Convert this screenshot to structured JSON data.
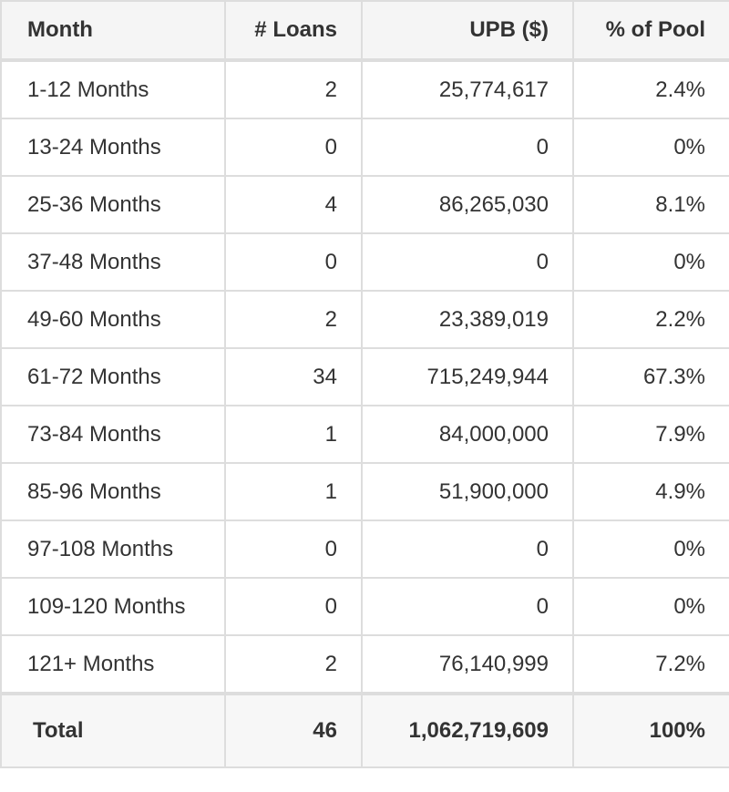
{
  "table": {
    "headers": {
      "month": "Month",
      "loans": "# Loans",
      "upb": "UPB ($)",
      "pct": "% of Pool"
    },
    "rows": [
      {
        "month": "1-12 Months",
        "loans": "2",
        "upb": "25,774,617",
        "pct": "2.4%"
      },
      {
        "month": "13-24 Months",
        "loans": "0",
        "upb": "0",
        "pct": "0%"
      },
      {
        "month": "25-36 Months",
        "loans": "4",
        "upb": "86,265,030",
        "pct": "8.1%"
      },
      {
        "month": "37-48 Months",
        "loans": "0",
        "upb": "0",
        "pct": "0%"
      },
      {
        "month": "49-60 Months",
        "loans": "2",
        "upb": "23,389,019",
        "pct": "2.2%"
      },
      {
        "month": "61-72 Months",
        "loans": "34",
        "upb": "715,249,944",
        "pct": "67.3%"
      },
      {
        "month": "73-84 Months",
        "loans": "1",
        "upb": "84,000,000",
        "pct": "7.9%"
      },
      {
        "month": "85-96 Months",
        "loans": "1",
        "upb": "51,900,000",
        "pct": "4.9%"
      },
      {
        "month": "97-108 Months",
        "loans": "0",
        "upb": "0",
        "pct": "0%"
      },
      {
        "month": "109-120 Months",
        "loans": "0",
        "upb": "0",
        "pct": "0%"
      },
      {
        "month": "121+ Months",
        "loans": "2",
        "upb": "76,140,999",
        "pct": "7.2%"
      }
    ],
    "total": {
      "month": "Total",
      "loans": "46",
      "upb": "1,062,719,609",
      "pct": "100%"
    }
  }
}
